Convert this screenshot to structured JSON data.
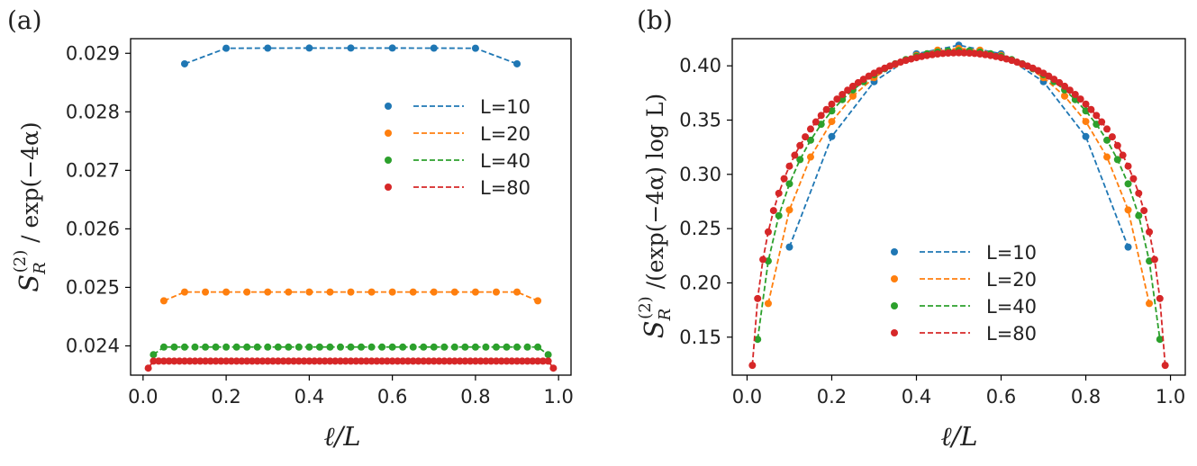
{
  "colors": {
    "L10": "#1f77b4",
    "L20": "#ff7f0e",
    "L40": "#2ca02c",
    "L80": "#d62728"
  },
  "chart_data": [
    {
      "panel_label": "(a)",
      "type": "line",
      "xlabel": "ℓ/L",
      "ylabel_main": "S",
      "ylabel_sub": "R",
      "ylabel_sup": "(2)",
      "ylabel_rest": "/ exp(−4α)",
      "xlim": [
        -0.03,
        1.03
      ],
      "ylim": [
        0.0235,
        0.02925
      ],
      "xticks": [
        0.0,
        0.2,
        0.4,
        0.6,
        0.8,
        1.0
      ],
      "xtick_labels": [
        "0.0",
        "0.2",
        "0.4",
        "0.6",
        "0.8",
        "1.0"
      ],
      "yticks": [
        0.024,
        0.025,
        0.026,
        0.027,
        0.028,
        0.029
      ],
      "ytick_labels": [
        "0.024",
        "0.025",
        "0.026",
        "0.027",
        "0.028",
        "0.029"
      ],
      "legend_position": "upper-right",
      "series": [
        {
          "name": "L=10",
          "L": 10,
          "mode": "flat",
          "edge": 0.02882,
          "plateau": 0.02908,
          "plateau_center": 0.02909
        },
        {
          "name": "L=20",
          "L": 20,
          "mode": "flat",
          "edge": 0.02477,
          "plateau": 0.02492,
          "plateau_center": 0.02492
        },
        {
          "name": "L=40",
          "L": 40,
          "mode": "flat",
          "edge": 0.02385,
          "plateau": 0.02398,
          "plateau_center": 0.02398
        },
        {
          "name": "L=80",
          "L": 80,
          "mode": "flat",
          "edge": 0.02362,
          "plateau": 0.02374,
          "plateau_center": 0.02374
        }
      ]
    },
    {
      "panel_label": "(b)",
      "type": "line",
      "xlabel": "ℓ/L",
      "ylabel_main": "S",
      "ylabel_sub": "R",
      "ylabel_sup": "(2)",
      "ylabel_rest": "/(exp(−4α) log L)",
      "xlim": [
        -0.035,
        1.035
      ],
      "ylim": [
        0.115,
        0.425
      ],
      "xticks": [
        0.0,
        0.2,
        0.4,
        0.6,
        0.8,
        1.0
      ],
      "xtick_labels": [
        "0.0",
        "0.2",
        "0.4",
        "0.6",
        "0.8",
        "1.0"
      ],
      "yticks": [
        0.15,
        0.2,
        0.25,
        0.3,
        0.35,
        0.4
      ],
      "ytick_labels": [
        "0.15",
        "0.20",
        "0.25",
        "0.30",
        "0.35",
        "0.40"
      ],
      "legend_position": "lower-center",
      "series": [
        {
          "name": "L=10",
          "L": 10,
          "mode": "dome",
          "edge": 0.233,
          "peak": 0.419,
          "edge_x": 0.1
        },
        {
          "name": "L=20",
          "L": 20,
          "mode": "dome",
          "edge": 0.181,
          "peak": 0.416,
          "edge_x": 0.05
        },
        {
          "name": "L=40",
          "L": 40,
          "mode": "dome",
          "edge": 0.148,
          "peak": 0.414,
          "edge_x": 0.025
        },
        {
          "name": "L=80",
          "L": 80,
          "mode": "dome",
          "edge": 0.124,
          "peak": 0.412,
          "edge_x": 0.0125
        }
      ]
    }
  ]
}
